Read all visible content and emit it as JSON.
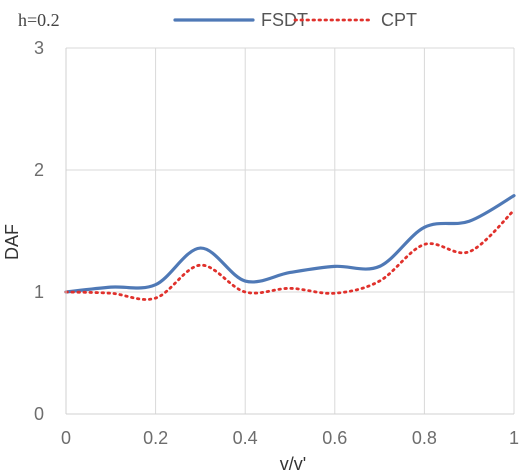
{
  "chart_data": {
    "type": "line",
    "title": "",
    "annotation": "h=0.2",
    "xlabel": "v/v'",
    "ylabel": "DAF",
    "xlim": [
      0,
      1
    ],
    "ylim": [
      0,
      3
    ],
    "x_ticks": [
      "0",
      "0.2",
      "0.4",
      "0.6",
      "0.8",
      "1"
    ],
    "y_ticks": [
      "0",
      "1",
      "2",
      "3"
    ],
    "grid": {
      "vertical": true,
      "horizontal": true
    },
    "legend_position": "top",
    "series": [
      {
        "name": "FSDT",
        "style": "solid",
        "color": "#4f79b6",
        "x": [
          0,
          0.1,
          0.2,
          0.3,
          0.4,
          0.5,
          0.6,
          0.7,
          0.8,
          0.9,
          1
        ],
        "y": [
          1.0,
          1.04,
          1.06,
          1.36,
          1.09,
          1.16,
          1.21,
          1.21,
          1.53,
          1.58,
          1.79
        ]
      },
      {
        "name": "CPT",
        "style": "dotted",
        "color": "#e0312c",
        "x": [
          0,
          0.1,
          0.2,
          0.3,
          0.4,
          0.5,
          0.6,
          0.7,
          0.8,
          0.9,
          1
        ],
        "y": [
          1.0,
          0.99,
          0.95,
          1.22,
          1.0,
          1.03,
          0.99,
          1.09,
          1.39,
          1.33,
          1.67
        ]
      }
    ]
  }
}
